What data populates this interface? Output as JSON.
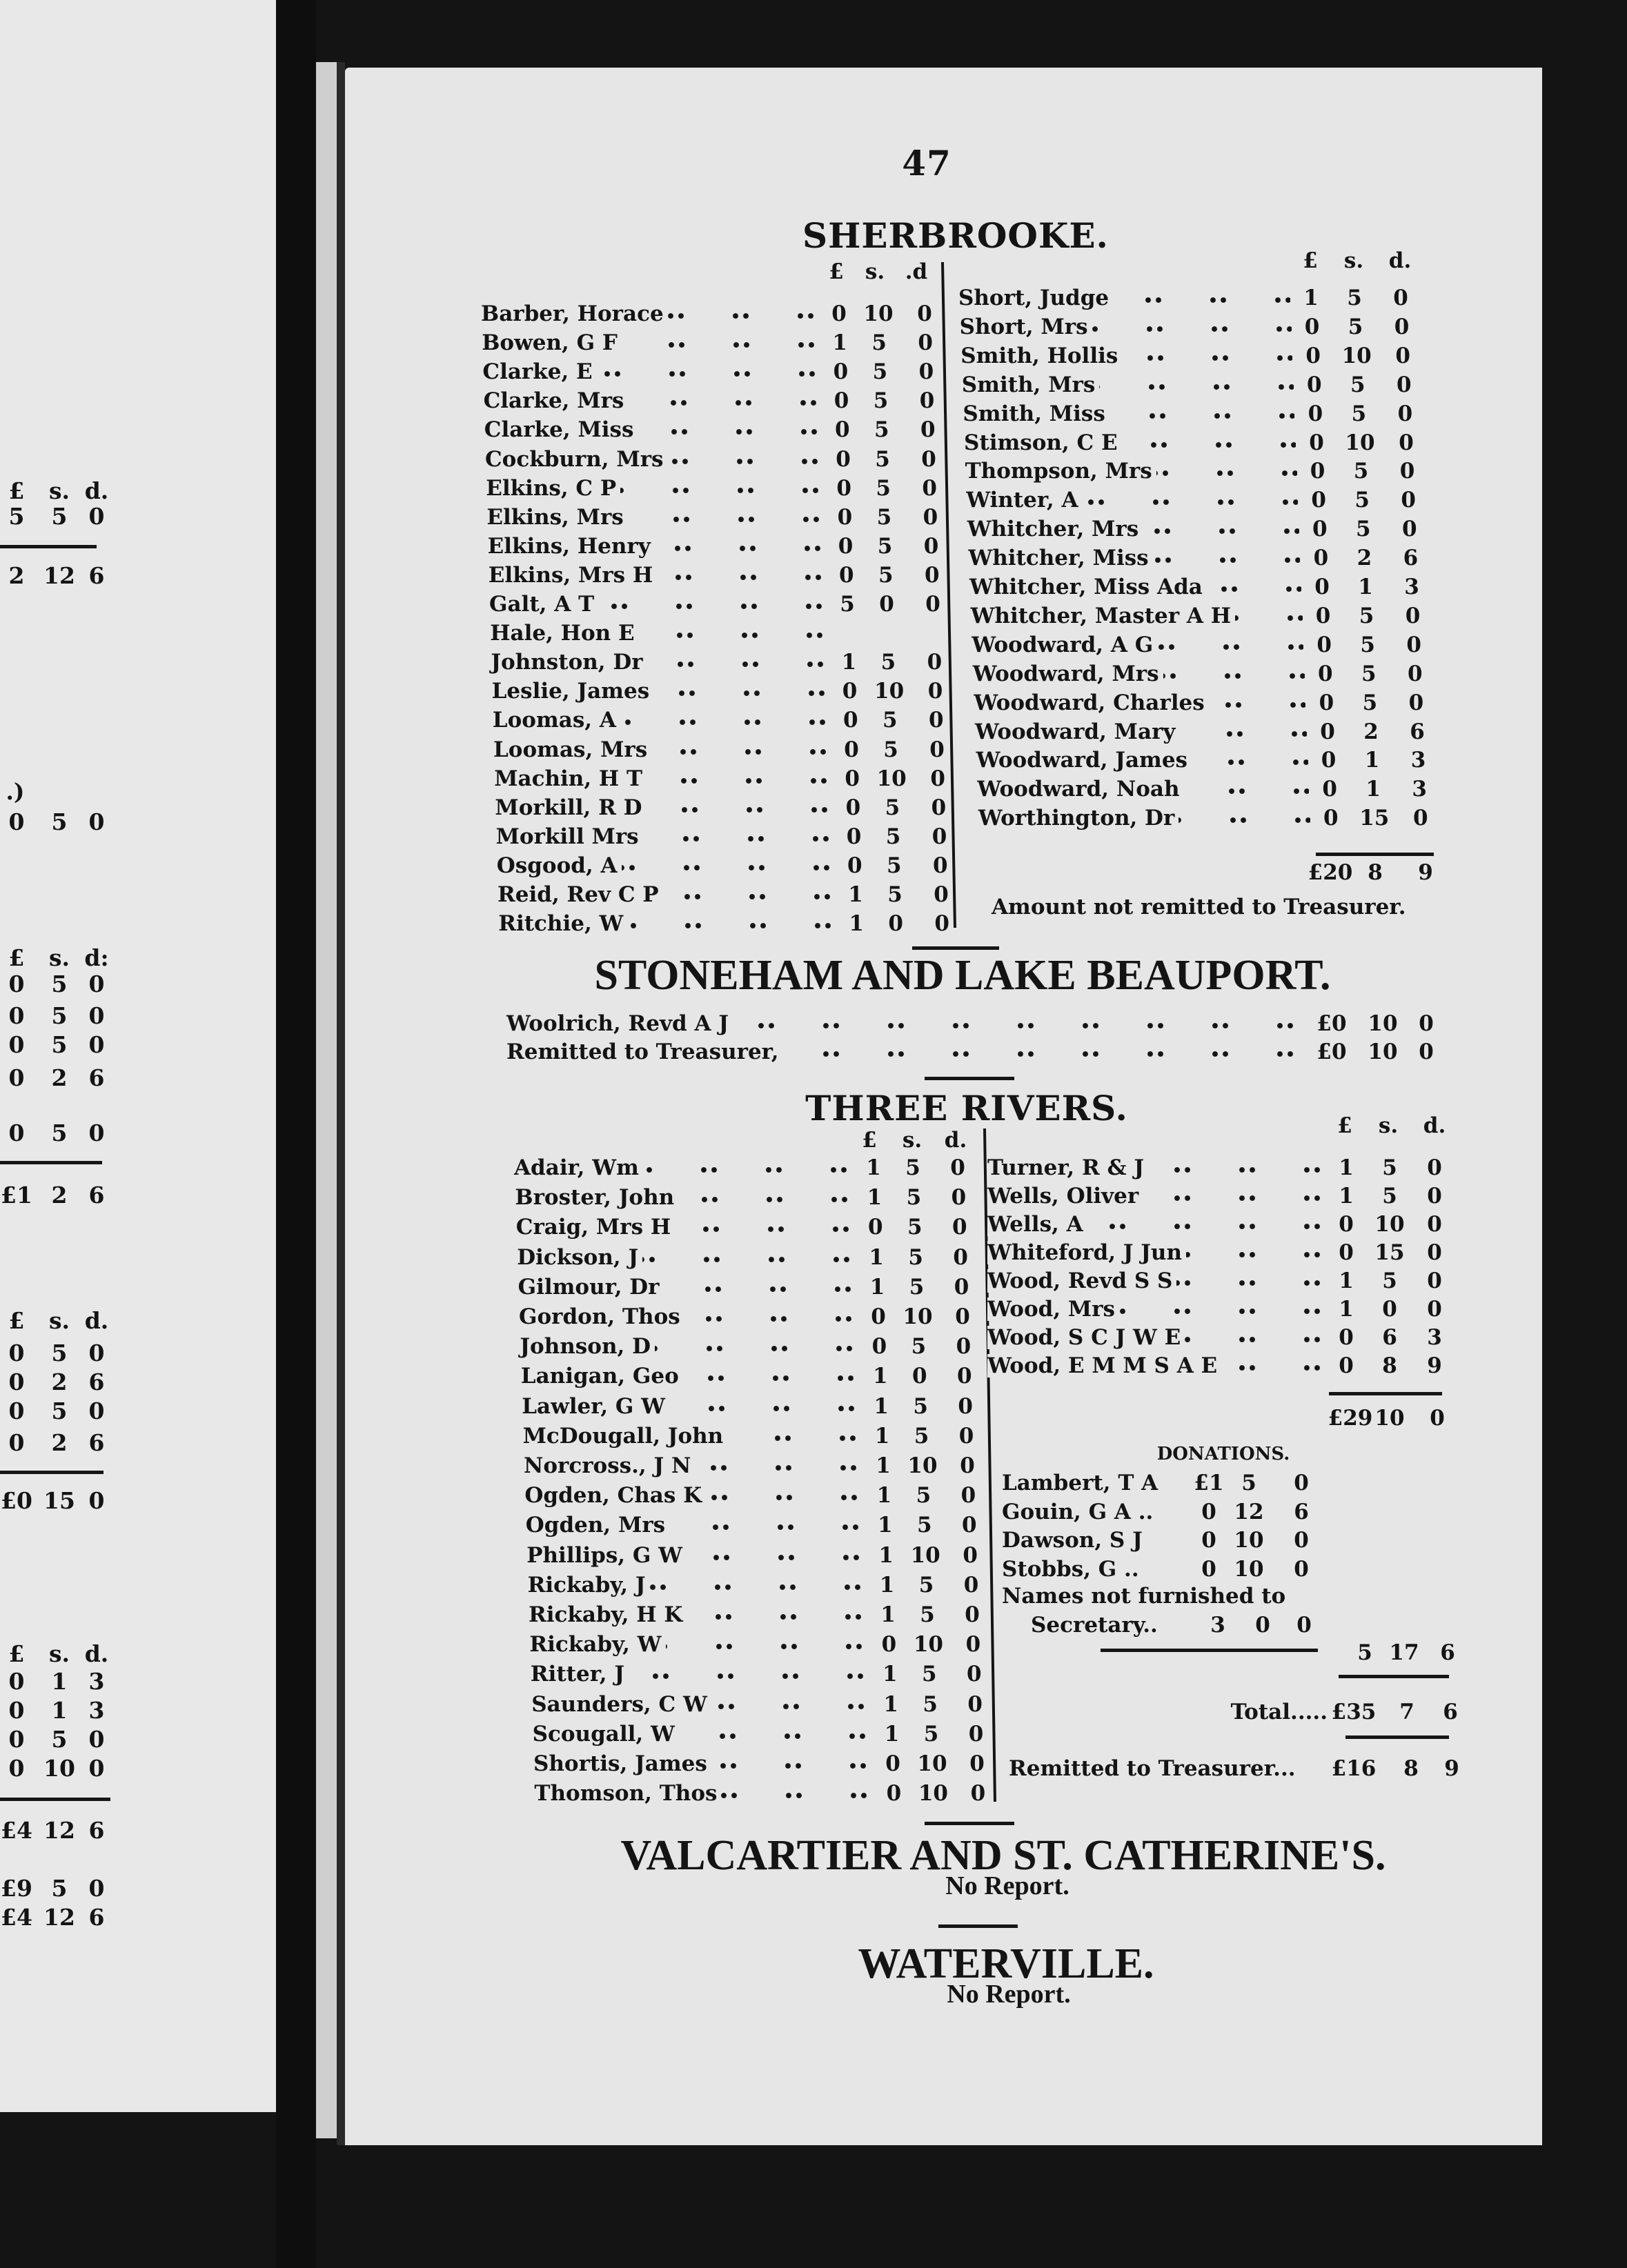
{
  "page_number": "47",
  "sherbrooke": {
    "title": "SHERBROOKE.",
    "left_header": {
      "l": "£",
      "s": "s.",
      "d": ".d"
    },
    "right_header": {
      "l": "£",
      "s": "s.",
      "d": "d."
    },
    "left": [
      {
        "name": "Barber, Horace",
        "l": "0",
        "s": "10",
        "d": "0"
      },
      {
        "name": "Bowen, G F",
        "l": "1",
        "s": "5",
        "d": "0"
      },
      {
        "name": "Clarke, E",
        "l": "0",
        "s": "5",
        "d": "0"
      },
      {
        "name": "Clarke, Mrs",
        "l": "0",
        "s": "5",
        "d": "0"
      },
      {
        "name": "Clarke, Miss",
        "l": "0",
        "s": "5",
        "d": "0"
      },
      {
        "name": "Cockburn, Mrs",
        "l": "0",
        "s": "5",
        "d": "0"
      },
      {
        "name": "Elkins, C P",
        "l": "0",
        "s": "5",
        "d": "0"
      },
      {
        "name": "Elkins, Mrs",
        "l": "0",
        "s": "5",
        "d": "0"
      },
      {
        "name": "Elkins, Henry",
        "l": "0",
        "s": "5",
        "d": "0"
      },
      {
        "name": "Elkins, Mrs H",
        "l": "0",
        "s": "5",
        "d": "0"
      },
      {
        "name": "Galt, A T",
        "l": "5",
        "s": "0",
        "d": "0"
      },
      {
        "name": "Hale, Hon E",
        "l": "",
        "s": "",
        "d": ""
      },
      {
        "name": "Johnston, Dr",
        "l": "1",
        "s": "5",
        "d": "0"
      },
      {
        "name": "Leslie, James",
        "l": "0",
        "s": "10",
        "d": "0"
      },
      {
        "name": "Loomas, A",
        "l": "0",
        "s": "5",
        "d": "0"
      },
      {
        "name": "Loomas, Mrs",
        "l": "0",
        "s": "5",
        "d": "0"
      },
      {
        "name": "Machin, H T",
        "l": "0",
        "s": "10",
        "d": "0"
      },
      {
        "name": "Morkill, R D",
        "l": "0",
        "s": "5",
        "d": "0"
      },
      {
        "name": "Morkill Mrs",
        "l": "0",
        "s": "5",
        "d": "0"
      },
      {
        "name": "Osgood, A",
        "l": "0",
        "s": "5",
        "d": "0"
      },
      {
        "name": "Reid, Rev C P",
        "l": "1",
        "s": "5",
        "d": "0"
      },
      {
        "name": "Ritchie, W",
        "l": "1",
        "s": "0",
        "d": "0"
      }
    ],
    "right": [
      {
        "name": "Short, Judge",
        "l": "1",
        "s": "5",
        "d": "0"
      },
      {
        "name": "Short, Mrs",
        "l": "0",
        "s": "5",
        "d": "0"
      },
      {
        "name": "Smith, Hollis",
        "l": "0",
        "s": "10",
        "d": "0"
      },
      {
        "name": "Smith, Mrs",
        "l": "0",
        "s": "5",
        "d": "0"
      },
      {
        "name": "Smith, Miss",
        "l": "0",
        "s": "5",
        "d": "0"
      },
      {
        "name": "Stimson, C E",
        "l": "0",
        "s": "10",
        "d": "0"
      },
      {
        "name": "Thompson, Mrs",
        "l": "0",
        "s": "5",
        "d": "0"
      },
      {
        "name": "Winter, A",
        "l": "0",
        "s": "5",
        "d": "0"
      },
      {
        "name": "Whitcher, Mrs",
        "l": "0",
        "s": "5",
        "d": "0"
      },
      {
        "name": "Whitcher, Miss",
        "l": "0",
        "s": "2",
        "d": "6"
      },
      {
        "name": "Whitcher, Miss Ada",
        "l": "0",
        "s": "1",
        "d": "3"
      },
      {
        "name": "Whitcher, Master A H",
        "l": "0",
        "s": "5",
        "d": "0"
      },
      {
        "name": "Woodward, A G",
        "l": "0",
        "s": "5",
        "d": "0"
      },
      {
        "name": "Woodward, Mrs",
        "l": "0",
        "s": "5",
        "d": "0"
      },
      {
        "name": "Woodward, Charles",
        "l": "0",
        "s": "5",
        "d": "0"
      },
      {
        "name": "Woodward, Mary",
        "l": "0",
        "s": "2",
        "d": "6"
      },
      {
        "name": "Woodward, James",
        "l": "0",
        "s": "1",
        "d": "3"
      },
      {
        "name": "Woodward, Noah",
        "l": "0",
        "s": "1",
        "d": "3"
      },
      {
        "name": "Worthington, Dr",
        "l": "0",
        "s": "15",
        "d": "0"
      }
    ],
    "total": {
      "l": "£20",
      "s": "8",
      "d": "9"
    },
    "note": "Amount not remitted to Treasurer."
  },
  "stoneham": {
    "title": "STONEHAM AND LAKE BEAUPORT.",
    "rows": [
      {
        "name": "Woolrich, Revd A J",
        "l": "£0",
        "s": "10",
        "d": "0"
      },
      {
        "name": "Remitted to Treasurer,",
        "l": "£0",
        "s": "10",
        "d": "0"
      }
    ]
  },
  "three_rivers": {
    "title": "THREE RIVERS.",
    "left_header": {
      "l": "£",
      "s": "s.",
      "d": "d."
    },
    "right_header": {
      "l": "£",
      "s": "s.",
      "d": "d."
    },
    "left": [
      {
        "name": "Adair, Wm",
        "l": "1",
        "s": "5",
        "d": "0"
      },
      {
        "name": "Broster, John",
        "l": "1",
        "s": "5",
        "d": "0"
      },
      {
        "name": "Craig, Mrs H",
        "l": "0",
        "s": "5",
        "d": "0"
      },
      {
        "name": "Dickson, J",
        "l": "1",
        "s": "5",
        "d": "0"
      },
      {
        "name": "Gilmour, Dr",
        "l": "1",
        "s": "5",
        "d": "0"
      },
      {
        "name": "Gordon, Thos",
        "l": "0",
        "s": "10",
        "d": "0"
      },
      {
        "name": "Johnson, D",
        "l": "0",
        "s": "5",
        "d": "0"
      },
      {
        "name": "Lanigan, Geo",
        "l": "1",
        "s": "0",
        "d": "0"
      },
      {
        "name": "Lawler, G W",
        "l": "1",
        "s": "5",
        "d": "0"
      },
      {
        "name": "McDougall, John",
        "l": "1",
        "s": "5",
        "d": "0"
      },
      {
        "name": "Norcross., J N",
        "l": "1",
        "s": "10",
        "d": "0"
      },
      {
        "name": "Ogden, Chas K",
        "l": "1",
        "s": "5",
        "d": "0"
      },
      {
        "name": "Ogden, Mrs",
        "l": "1",
        "s": "5",
        "d": "0"
      },
      {
        "name": "Phillips, G W",
        "l": "1",
        "s": "10",
        "d": "0"
      },
      {
        "name": "Rickaby, J",
        "l": "1",
        "s": "5",
        "d": "0"
      },
      {
        "name": "Rickaby, H K",
        "l": "1",
        "s": "5",
        "d": "0"
      },
      {
        "name": "Rickaby, W",
        "l": "0",
        "s": "10",
        "d": "0"
      },
      {
        "name": "Ritter, J",
        "l": "1",
        "s": "5",
        "d": "0"
      },
      {
        "name": "Saunders, C W",
        "l": "1",
        "s": "5",
        "d": "0"
      },
      {
        "name": "Scougall, W",
        "l": "1",
        "s": "5",
        "d": "0"
      },
      {
        "name": "Shortis, James",
        "l": "0",
        "s": "10",
        "d": "0"
      },
      {
        "name": "Thomson, Thos",
        "l": "0",
        "s": "10",
        "d": "0"
      }
    ],
    "right": [
      {
        "name": "Turner, R & J",
        "l": "1",
        "s": "5",
        "d": "0"
      },
      {
        "name": "Wells, Oliver",
        "l": "1",
        "s": "5",
        "d": "0"
      },
      {
        "name": "Wells, A",
        "l": "0",
        "s": "10",
        "d": "0"
      },
      {
        "name": "Whiteford, J Jun",
        "l": "0",
        "s": "15",
        "d": "0"
      },
      {
        "name": "Wood, Revd S S",
        "l": "1",
        "s": "5",
        "d": "0"
      },
      {
        "name": "Wood, Mrs",
        "l": "1",
        "s": "0",
        "d": "0"
      },
      {
        "name": "Wood, S C J W E",
        "l": "0",
        "s": "6",
        "d": "3"
      },
      {
        "name": "Wood, E M M S A E",
        "l": "0",
        "s": "8",
        "d": "9"
      }
    ],
    "subtotal": {
      "l": "£29",
      "s": "10",
      "d": "0"
    },
    "donations_title": "DONATIONS.",
    "donations": [
      {
        "name": "Lambert, T A",
        "l": "£1",
        "s": "5",
        "d": "0"
      },
      {
        "name": "Gouin, G A ..",
        "l": "0",
        "s": "12",
        "d": "6"
      },
      {
        "name": "Dawson, S J",
        "l": "0",
        "s": "10",
        "d": "0"
      },
      {
        "name": "Stobbs, G  ..",
        "l": "0",
        "s": "10",
        "d": "0"
      }
    ],
    "names_not_furnished": {
      "line1": "Names not furnished to",
      "line2": "Secretary..",
      "l": "3",
      "s": "0",
      "d": "0"
    },
    "donations_total": {
      "l": "5",
      "s": "17",
      "d": "6"
    },
    "total_label": "Total.....",
    "total": {
      "l": "£35",
      "s": "7",
      "d": "6"
    },
    "remitted_label": "Remitted to Treasurer...",
    "remitted": {
      "l": "£16",
      "s": "8",
      "d": "9"
    }
  },
  "valcartier": {
    "title": "VALCARTIER AND ST. CATHERINE'S.",
    "note": "No Report."
  },
  "waterville": {
    "title": "WATERVILLE.",
    "note": "No Report."
  },
  "left_page_fragment": {
    "lines": [
      {
        "l": "£",
        "s": "s.",
        "d": "d."
      },
      {
        "l": "5",
        "s": "5",
        "d": "0"
      },
      {
        "l": "2",
        "s": "12",
        "d": "6"
      },
      {
        "l": ".)",
        "s": "",
        "d": ""
      },
      {
        "l": "0",
        "s": "5",
        "d": "0"
      },
      {
        "l": "£",
        "s": "s.",
        "d": "d:"
      },
      {
        "l": "0",
        "s": "5",
        "d": "0"
      },
      {
        "l": "0",
        "s": "5",
        "d": "0"
      },
      {
        "l": "0",
        "s": "5",
        "d": "0"
      },
      {
        "l": "0",
        "s": "2",
        "d": "6"
      },
      {
        "l": "0",
        "s": "5",
        "d": "0"
      },
      {
        "l": "£1",
        "s": "2",
        "d": "6"
      },
      {
        "l": "£",
        "s": "s.",
        "d": "d."
      },
      {
        "l": "0",
        "s": "5",
        "d": "0"
      },
      {
        "l": "0",
        "s": "2",
        "d": "6"
      },
      {
        "l": "0",
        "s": "5",
        "d": "0"
      },
      {
        "l": "0",
        "s": "2",
        "d": "6"
      },
      {
        "l": "£0",
        "s": "15",
        "d": "0"
      },
      {
        "l": "£",
        "s": "s.",
        "d": "d."
      },
      {
        "l": "0",
        "s": "1",
        "d": "3"
      },
      {
        "l": "0",
        "s": "1",
        "d": "3"
      },
      {
        "l": "0",
        "s": "5",
        "d": "0"
      },
      {
        "l": "0",
        "s": "10",
        "d": "0"
      },
      {
        "l": "£4",
        "s": "12",
        "d": "6"
      },
      {
        "l": "£9",
        "s": "5",
        "d": "0"
      },
      {
        "l": "£4",
        "s": "12",
        "d": "6"
      }
    ]
  }
}
